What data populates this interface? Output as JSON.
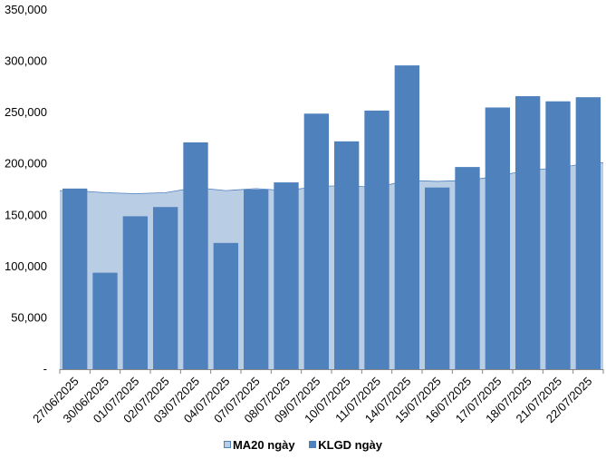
{
  "chart_data": {
    "type": "bar",
    "title": "",
    "xlabel": "",
    "ylabel": "",
    "ylim": [
      0,
      350000
    ],
    "yticks": [
      0,
      50000,
      100000,
      150000,
      200000,
      250000,
      300000,
      350000
    ],
    "ytick_labels": [
      "-",
      "50,000",
      "100,000",
      "150,000",
      "200,000",
      "250,000",
      "300,000",
      "350,000"
    ],
    "categories": [
      "27/06/2025",
      "30/06/2025",
      "01/07/2025",
      "02/07/2025",
      "03/07/2025",
      "04/07/2025",
      "07/07/2025",
      "08/07/2025",
      "09/07/2025",
      "10/07/2025",
      "11/07/2025",
      "14/07/2025",
      "15/07/2025",
      "16/07/2025",
      "17/07/2025",
      "18/07/2025",
      "21/07/2025",
      "22/07/2025"
    ],
    "series": [
      {
        "name": "MA20 ngày",
        "type": "area",
        "color": "#B9CDE5",
        "line_color": "#4F81BD",
        "values": [
          174000,
          172000,
          171000,
          172000,
          177000,
          174000,
          176000,
          174000,
          178000,
          179000,
          177000,
          184000,
          183000,
          184000,
          188000,
          194000,
          196000,
          201000
        ]
      },
      {
        "name": "KLGD ngày",
        "type": "bar",
        "color": "#4F81BD",
        "values": [
          176000,
          94000,
          149000,
          158000,
          221000,
          123000,
          175000,
          182000,
          249000,
          222000,
          252000,
          296000,
          177000,
          197000,
          255000,
          266000,
          261000,
          265000
        ]
      }
    ],
    "grid": false,
    "legend_position": "bottom"
  }
}
